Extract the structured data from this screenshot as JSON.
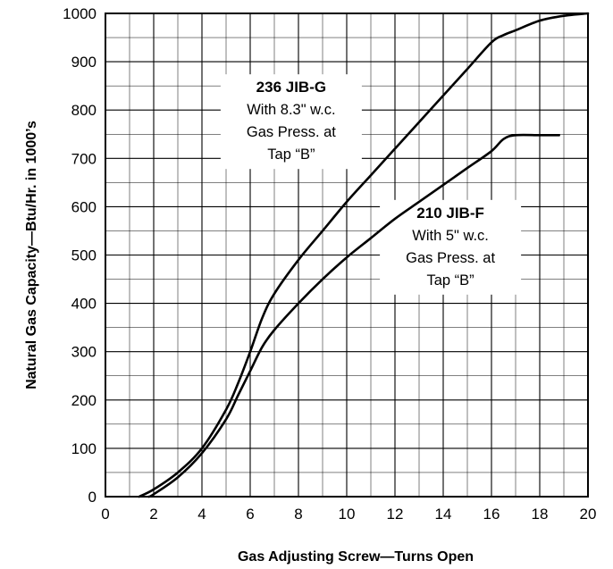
{
  "chart_data": {
    "type": "line",
    "title": "",
    "xlabel": "Gas Adjusting Screw—Turns Open",
    "ylabel": "Natural Gas Capacity—Btu/Hr. in 1000’s",
    "xlim": [
      0,
      20
    ],
    "ylim": [
      0,
      1000
    ],
    "x_ticks": [
      "0",
      "2",
      "4",
      "6",
      "8",
      "10",
      "12",
      "14",
      "16",
      "18",
      "20"
    ],
    "y_ticks": [
      "0",
      "100",
      "200",
      "300",
      "400",
      "500",
      "600",
      "700",
      "800",
      "900",
      "1000"
    ],
    "grid": true,
    "grid_minor_step": [
      1,
      50
    ],
    "series": [
      {
        "name": "236 JIB-G",
        "x": [
          1.4,
          2,
          3,
          4,
          5,
          5.5,
          6,
          6.5,
          7,
          8,
          9,
          10,
          11,
          12,
          13,
          14,
          15,
          16,
          16.5,
          17,
          18,
          19,
          20
        ],
        "y": [
          0,
          15,
          50,
          100,
          180,
          235,
          300,
          370,
          420,
          490,
          550,
          610,
          665,
          720,
          775,
          830,
          885,
          940,
          955,
          965,
          985,
          995,
          1000
        ]
      },
      {
        "name": "210 JIB-F",
        "x": [
          1.8,
          2,
          3,
          4,
          5,
          5.5,
          6,
          6.5,
          7,
          8,
          9,
          10,
          11,
          12,
          13,
          14,
          15,
          16,
          16.5,
          17,
          18,
          18.8
        ],
        "y": [
          0,
          5,
          40,
          90,
          160,
          210,
          260,
          310,
          345,
          400,
          450,
          495,
          535,
          575,
          610,
          645,
          680,
          715,
          740,
          748,
          748,
          748
        ]
      }
    ],
    "annotations": [
      {
        "lines": [
          "236 JIB-G",
          "With 8.3\" w.c.",
          "Gas Press. at",
          "Tap “B”"
        ],
        "anchor": [
          7.7,
          837
        ]
      },
      {
        "lines": [
          "210 JIB-F",
          "With 5\" w.c.",
          "Gas Press. at",
          "Tap “B”"
        ],
        "anchor": [
          14.3,
          577
        ]
      }
    ],
    "colors": {
      "line": "#000000",
      "grid": "#000000"
    }
  }
}
